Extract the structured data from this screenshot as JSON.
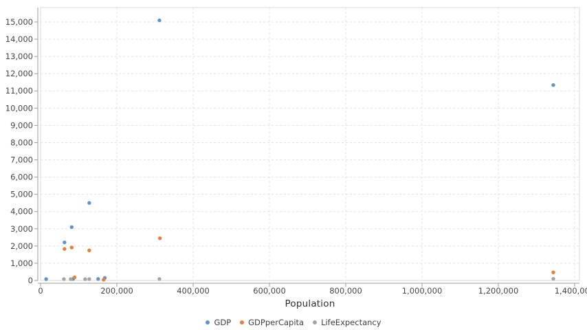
{
  "chart_data": {
    "type": "scatter",
    "title": "",
    "xlabel": "Population",
    "ylabel": "",
    "xlim": [
      0,
      1412600
    ],
    "ylim": [
      0,
      15836
    ],
    "x_ticks": [
      0,
      200000,
      400000,
      600000,
      800000,
      1000000,
      1200000,
      1400000
    ],
    "y_ticks": [
      0,
      1000,
      2000,
      3000,
      4000,
      5000,
      6000,
      7000,
      8000,
      9000,
      10000,
      11000,
      12000,
      13000,
      14000,
      15000
    ],
    "grid": true,
    "grid_style": "dashed",
    "legend_position": "bottom",
    "colors": {
      "axis_line": "#9a9a9a",
      "grid_line": "#e0e0e0",
      "plot_border": "#d9d9d9",
      "tick_text": "#454545"
    },
    "series": [
      {
        "name": "GDP",
        "color": "#5E94C9",
        "points": [
          [
            14700,
            80
          ],
          [
            62800,
            2210
          ],
          [
            81700,
            3100
          ],
          [
            85500,
            90
          ],
          [
            127700,
            4500
          ],
          [
            151000,
            90
          ],
          [
            168500,
            150
          ],
          [
            311600,
            15094
          ],
          [
            1344100,
            11340
          ]
        ]
      },
      {
        "name": "GDPperCapita",
        "color": "#E87E3C",
        "points": [
          [
            62800,
            1830
          ],
          [
            81700,
            1915
          ],
          [
            89300,
            185
          ],
          [
            127700,
            1745
          ],
          [
            165300,
            45
          ],
          [
            312900,
            2450
          ],
          [
            1344100,
            470
          ]
        ]
      },
      {
        "name": "LifeExpectancy",
        "color": "#A5A5A5",
        "points": [
          [
            61200,
            81
          ],
          [
            79000,
            80
          ],
          [
            116900,
            77
          ],
          [
            127700,
            83
          ],
          [
            311600,
            88
          ],
          [
            1344100,
            95
          ]
        ]
      }
    ]
  }
}
